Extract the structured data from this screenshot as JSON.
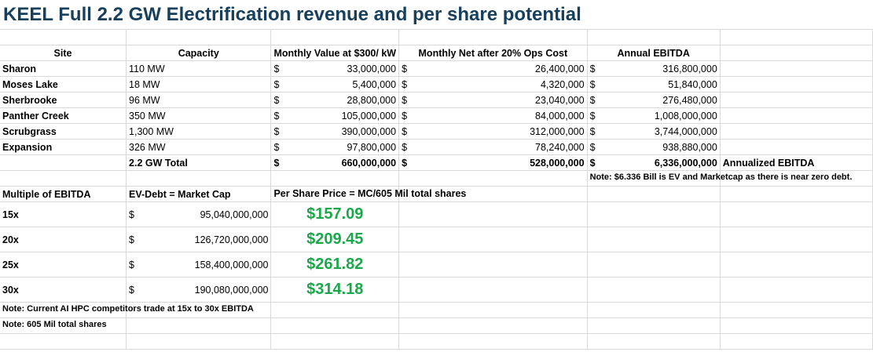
{
  "title": "KEEL Full 2.2 GW Electrification revenue and per share potential",
  "headers": {
    "site": "Site",
    "capacity": "Capacity",
    "monthly_value": "Monthly Value at $300/ kW",
    "monthly_net": "Monthly Net after 20% Ops Cost",
    "annual": "Annual EBITDA"
  },
  "currency": "$",
  "sites": [
    {
      "name": "Sharon",
      "capacity": "110 MW",
      "monthly": "33,000,000",
      "net": "26,400,000",
      "annual": "316,800,000"
    },
    {
      "name": "Moses Lake",
      "capacity": "18 MW",
      "monthly": "5,400,000",
      "net": "4,320,000",
      "annual": "51,840,000"
    },
    {
      "name": "Sherbrooke",
      "capacity": "96 MW",
      "monthly": "28,800,000",
      "net": "23,040,000",
      "annual": "276,480,000"
    },
    {
      "name": "Panther Creek",
      "capacity": "350 MW",
      "monthly": "105,000,000",
      "net": "84,000,000",
      "annual": "1,008,000,000"
    },
    {
      "name": "Scrubgrass",
      "capacity": "1,300 MW",
      "monthly": "390,000,000",
      "net": "312,000,000",
      "annual": "3,744,000,000"
    },
    {
      "name": "Expansion",
      "capacity": "326 MW",
      "monthly": "97,800,000",
      "net": "78,240,000",
      "annual": "938,880,000"
    }
  ],
  "total": {
    "capacity": "2.2 GW Total",
    "monthly": "660,000,000",
    "net": "528,000,000",
    "annual": "6,336,000,000",
    "label": "Annualized EBITDA"
  },
  "note_ev": "Note: $6.336 Bill is EV and Marketcap as there is near zero debt.",
  "valuation_headers": {
    "multiple": "Multiple of EBITDA",
    "market_cap": "EV-Debt = Market Cap",
    "per_share": "Per Share Price = MC/605 Mil total shares"
  },
  "valuations": [
    {
      "multiple": "15x",
      "market_cap": "95,040,000,000",
      "price": "$157.09"
    },
    {
      "multiple": "20x",
      "market_cap": "126,720,000,000",
      "price": "$209.45"
    },
    {
      "multiple": "25x",
      "market_cap": "158,400,000,000",
      "price": "$261.82"
    },
    {
      "multiple": "30x",
      "market_cap": "190,080,000,000",
      "price": "$314.18"
    }
  ],
  "notes": [
    "Note: Current AI HPC competitors trade at 15x to 30x EBITDA",
    "Note: 605 Mil total shares"
  ]
}
